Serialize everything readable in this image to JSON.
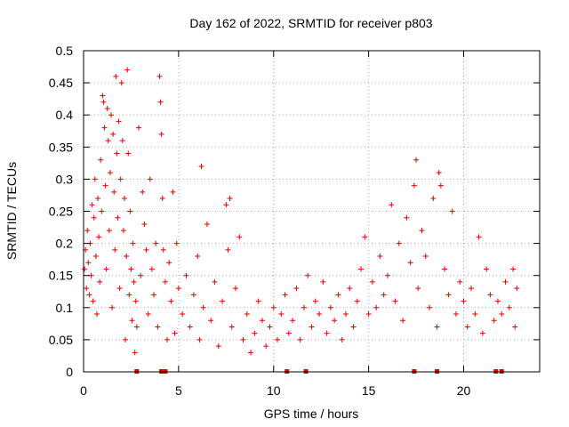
{
  "chart_data": {
    "type": "scatter",
    "title": "Day 162 of 2022, SRMTID for receiver p803",
    "xlabel": "GPS time / hours",
    "ylabel": "SRMTID / TECUs",
    "xlim": [
      0,
      24
    ],
    "ylim": [
      0,
      0.5
    ],
    "x_ticks": [
      0,
      5,
      10,
      15,
      20
    ],
    "x_tick_labels": [
      "0",
      "5",
      "10",
      "15",
      "20"
    ],
    "y_ticks": [
      0,
      0.05,
      0.1,
      0.15,
      0.2,
      0.25,
      0.3,
      0.35,
      0.4,
      0.45,
      0.5
    ],
    "y_tick_labels": [
      "0",
      "0.05",
      "0.1",
      "0.15",
      "0.2",
      "0.25",
      "0.3",
      "0.35",
      "0.4",
      "0.45",
      "0.5"
    ],
    "grid": true,
    "marker": "+",
    "color": "#e00000",
    "series": [
      {
        "name": "SRMTID",
        "points": [
          [
            0.05,
            0.16
          ],
          [
            0.1,
            0.19
          ],
          [
            0.15,
            0.13
          ],
          [
            0.2,
            0.22
          ],
          [
            0.25,
            0.17
          ],
          [
            0.3,
            0.12
          ],
          [
            0.35,
            0.2
          ],
          [
            0.4,
            0.15
          ],
          [
            0.45,
            0.26
          ],
          [
            0.5,
            0.11
          ],
          [
            0.55,
            0.24
          ],
          [
            0.6,
            0.3
          ],
          [
            0.65,
            0.18
          ],
          [
            0.7,
            0.09
          ],
          [
            0.75,
            0.27
          ],
          [
            0.8,
            0.21
          ],
          [
            0.85,
            0.14
          ],
          [
            0.9,
            0.33
          ],
          [
            0.95,
            0.25
          ],
          [
            1.0,
            0.43
          ],
          [
            1.05,
            0.42
          ],
          [
            1.1,
            0.38
          ],
          [
            1.15,
            0.29
          ],
          [
            1.2,
            0.16
          ],
          [
            1.25,
            0.41
          ],
          [
            1.3,
            0.36
          ],
          [
            1.35,
            0.22
          ],
          [
            1.4,
            0.31
          ],
          [
            1.45,
            0.4
          ],
          [
            1.5,
            0.1
          ],
          [
            1.55,
            0.37
          ],
          [
            1.6,
            0.28
          ],
          [
            1.65,
            0.19
          ],
          [
            1.7,
            0.46
          ],
          [
            1.75,
            0.34
          ],
          [
            1.8,
            0.24
          ],
          [
            1.85,
            0.39
          ],
          [
            1.9,
            0.13
          ],
          [
            1.95,
            0.3
          ],
          [
            2.0,
            0.45
          ],
          [
            2.05,
            0.36
          ],
          [
            2.1,
            0.22
          ],
          [
            2.15,
            0.27
          ],
          [
            2.2,
            0.05
          ],
          [
            2.25,
            0.18
          ],
          [
            2.3,
            0.47
          ],
          [
            2.35,
            0.34
          ],
          [
            2.4,
            0.12
          ],
          [
            2.45,
            0.25
          ],
          [
            2.5,
            0.16
          ],
          [
            2.55,
            0.08
          ],
          [
            2.6,
            0.2
          ],
          [
            2.65,
            0.14
          ],
          [
            2.7,
            0.03
          ],
          [
            2.75,
            0.11
          ],
          [
            2.8,
            0.07
          ],
          [
            2.9,
            0.38
          ],
          [
            3.0,
            0.15
          ],
          [
            3.1,
            0.28
          ],
          [
            3.2,
            0.23
          ],
          [
            3.3,
            0.19
          ],
          [
            3.4,
            0.09
          ],
          [
            3.5,
            0.3
          ],
          [
            3.6,
            0.16
          ],
          [
            3.7,
            0.12
          ],
          [
            3.8,
            0.2
          ],
          [
            3.9,
            0.07
          ],
          [
            4.0,
            0.46
          ],
          [
            4.05,
            0.42
          ],
          [
            4.1,
            0.37
          ],
          [
            4.15,
            0.27
          ],
          [
            4.2,
            0.19
          ],
          [
            4.3,
            0.14
          ],
          [
            4.4,
            0.05
          ],
          [
            4.5,
            0.17
          ],
          [
            4.6,
            0.11
          ],
          [
            4.7,
            0.28
          ],
          [
            4.8,
            0.06
          ],
          [
            4.9,
            0.2
          ],
          [
            5.0,
            0.13
          ],
          [
            5.2,
            0.09
          ],
          [
            5.4,
            0.15
          ],
          [
            5.6,
            0.07
          ],
          [
            5.8,
            0.12
          ],
          [
            6.0,
            0.18
          ],
          [
            6.1,
            0.05
          ],
          [
            6.2,
            0.32
          ],
          [
            6.3,
            0.1
          ],
          [
            6.5,
            0.23
          ],
          [
            6.7,
            0.08
          ],
          [
            6.9,
            0.14
          ],
          [
            7.1,
            0.04
          ],
          [
            7.3,
            0.11
          ],
          [
            7.5,
            0.26
          ],
          [
            7.6,
            0.19
          ],
          [
            7.7,
            0.27
          ],
          [
            7.8,
            0.07
          ],
          [
            8.0,
            0.13
          ],
          [
            8.2,
            0.21
          ],
          [
            8.4,
            0.05
          ],
          [
            8.6,
            0.09
          ],
          [
            8.8,
            0.03
          ],
          [
            9.0,
            0.06
          ],
          [
            9.2,
            0.11
          ],
          [
            9.4,
            0.08
          ],
          [
            9.6,
            0.04
          ],
          [
            9.8,
            0.07
          ],
          [
            10.0,
            0.1
          ],
          [
            10.2,
            0.05
          ],
          [
            10.4,
            0.09
          ],
          [
            10.6,
            0.12
          ],
          [
            10.8,
            0.06
          ],
          [
            11.0,
            0.08
          ],
          [
            11.2,
            0.13
          ],
          [
            11.4,
            0.05
          ],
          [
            11.6,
            0.1
          ],
          [
            11.8,
            0.15
          ],
          [
            12.0,
            0.07
          ],
          [
            12.2,
            0.11
          ],
          [
            12.4,
            0.09
          ],
          [
            12.6,
            0.14
          ],
          [
            12.8,
            0.06
          ],
          [
            13.0,
            0.1
          ],
          [
            13.2,
            0.08
          ],
          [
            13.4,
            0.12
          ],
          [
            13.6,
            0.05
          ],
          [
            13.8,
            0.09
          ],
          [
            14.0,
            0.13
          ],
          [
            14.2,
            0.07
          ],
          [
            14.4,
            0.11
          ],
          [
            14.6,
            0.16
          ],
          [
            14.8,
            0.21
          ],
          [
            15.0,
            0.09
          ],
          [
            15.2,
            0.14
          ],
          [
            15.4,
            0.1
          ],
          [
            15.6,
            0.18
          ],
          [
            15.8,
            0.12
          ],
          [
            16.0,
            0.15
          ],
          [
            16.2,
            0.26
          ],
          [
            16.4,
            0.11
          ],
          [
            16.6,
            0.2
          ],
          [
            16.8,
            0.08
          ],
          [
            17.0,
            0.24
          ],
          [
            17.2,
            0.17
          ],
          [
            17.4,
            0.29
          ],
          [
            17.5,
            0.33
          ],
          [
            17.6,
            0.13
          ],
          [
            17.8,
            0.22
          ],
          [
            18.0,
            0.18
          ],
          [
            18.2,
            0.1
          ],
          [
            18.4,
            0.27
          ],
          [
            18.6,
            0.07
          ],
          [
            18.7,
            0.31
          ],
          [
            18.8,
            0.29
          ],
          [
            19.0,
            0.16
          ],
          [
            19.2,
            0.12
          ],
          [
            19.4,
            0.25
          ],
          [
            19.6,
            0.09
          ],
          [
            19.8,
            0.14
          ],
          [
            20.0,
            0.11
          ],
          [
            20.2,
            0.07
          ],
          [
            20.4,
            0.13
          ],
          [
            20.6,
            0.09
          ],
          [
            20.8,
            0.21
          ],
          [
            21.0,
            0.06
          ],
          [
            21.2,
            0.16
          ],
          [
            21.4,
            0.12
          ],
          [
            21.6,
            0.08
          ],
          [
            21.8,
            0.11
          ],
          [
            22.0,
            0.09
          ],
          [
            22.2,
            0.14
          ],
          [
            22.4,
            0.1
          ],
          [
            22.6,
            0.16
          ],
          [
            22.7,
            0.07
          ],
          [
            22.8,
            0.13
          ]
        ]
      }
    ],
    "zero_markers_x": [
      2.8,
      4.1,
      4.3,
      10.7,
      11.7,
      17.4,
      18.6,
      21.7,
      22.0
    ]
  }
}
